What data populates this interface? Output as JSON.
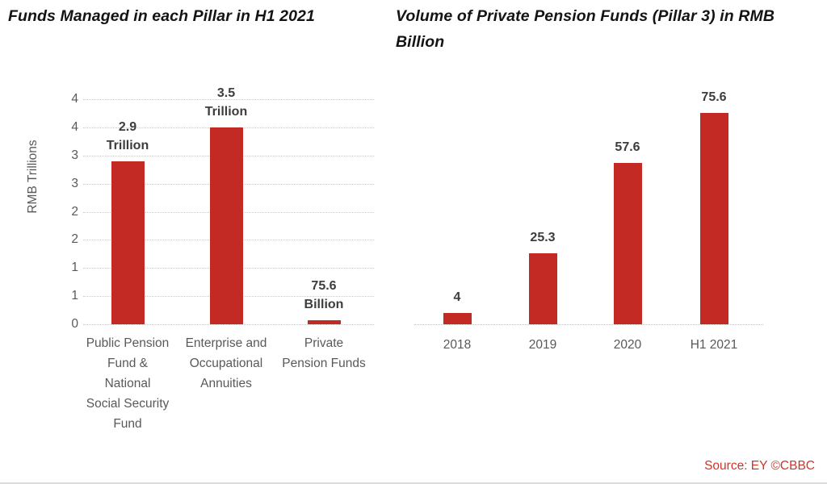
{
  "page": {
    "source": "Source: EY ©CBBC"
  },
  "colors": {
    "bar_red": "#c22a23",
    "source_red": "#cf352a",
    "title_text": "#141414",
    "axis_text": "#595959",
    "data_label_text": "#3d3d3d",
    "gridline": "#c9c9c9"
  },
  "chart_data": [
    {
      "type": "bar",
      "title": "Funds Managed in each Pillar in H1 2021",
      "xlabel": "",
      "ylabel": "RMB Trillions",
      "categories": [
        "Public Pension Fund & National Social Security Fund",
        "Enterprise and Occupational Annuities",
        "Private Pension Funds"
      ],
      "category_lines": [
        [
          "Public Pension",
          "Fund &",
          "National",
          "Social Security",
          "Fund"
        ],
        [
          "Enterprise and",
          "Occupational",
          "Annuities"
        ],
        [
          "Private",
          "Pension Funds"
        ]
      ],
      "values": [
        2.9,
        3.5,
        0.0756
      ],
      "value_unit": "RMB Trillions",
      "bar_label_lines": [
        [
          "2.9",
          "Trillion"
        ],
        [
          "3.5",
          "Trillion"
        ],
        [
          "75.6",
          "Billion"
        ]
      ],
      "ylim": [
        0,
        4
      ],
      "y_tick_labels": [
        "4",
        "4",
        "3",
        "3",
        "2",
        "2",
        "1",
        "1",
        "0"
      ],
      "y_tick_values": [
        4.0,
        3.5,
        3.0,
        2.5,
        2.0,
        1.5,
        1.0,
        0.5,
        0.0
      ],
      "grid": true,
      "legend": false
    },
    {
      "type": "bar",
      "title": "Volume of Private Pension Funds (Pillar 3) in RMB Billion",
      "xlabel": "",
      "ylabel": "",
      "categories": [
        "2018",
        "2019",
        "2020",
        "H1 2021"
      ],
      "values": [
        4,
        25.3,
        57.6,
        75.6
      ],
      "bar_labels": [
        "4",
        "25.3",
        "57.6",
        "75.6"
      ],
      "value_unit": "RMB Billion",
      "ylim": [
        0,
        75.6
      ],
      "grid": false,
      "legend": false
    }
  ]
}
